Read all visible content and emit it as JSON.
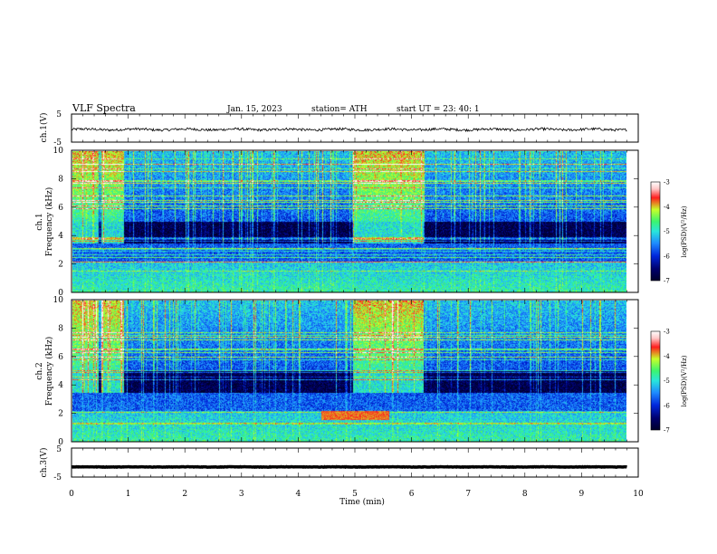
{
  "header": {
    "title": "VLF  Spectra",
    "date": "Jan. 15, 2023",
    "station": "station= ATH",
    "start": "start  UT  =    23: 40: 1"
  },
  "colors": {
    "spectrum": [
      "#00002a",
      "#00006e",
      "#0026dc",
      "#1e8cff",
      "#28e6dc",
      "#3cf56e",
      "#c8ff28",
      "#ff1e1e",
      "#ffc8c8",
      "#ffffff"
    ],
    "trace": "#000000",
    "frame": "#000000"
  },
  "chart_data": [
    {
      "type": "line",
      "panel": "ch1-waveform",
      "ylabel": "ch.1(V)",
      "ylim": [
        -5,
        5
      ],
      "yticks": [
        "5",
        "-5"
      ],
      "xlim": [
        0,
        10
      ],
      "description_values": "noisy waveform centered near -0.5 V with amplitude about ±1 V",
      "baseline": -0.5,
      "noise": 0.9
    },
    {
      "type": "heatmap",
      "panel": "ch1-spectrogram",
      "ylabel_line1": "ch.1",
      "ylabel_line2": "Frequency  (kHz)",
      "ylim": [
        0,
        10
      ],
      "yticks": [
        "10",
        "8",
        "6",
        "4",
        "2",
        "0"
      ],
      "xlim": [
        0,
        10
      ],
      "strong_intervals_min": [
        [
          0,
          0.9
        ],
        [
          4.95,
          6.2
        ]
      ],
      "gap_intervals_min": [
        [
          0.45,
          0.5
        ]
      ],
      "colorbar": {
        "label": "log(PSD)(V²/Hz)",
        "range": [
          -7,
          -3
        ],
        "ticks": [
          "-3",
          "-4",
          "-5",
          "-6",
          "-7"
        ]
      }
    },
    {
      "type": "heatmap",
      "panel": "ch2-spectrogram",
      "ylabel_line1": "ch.2",
      "ylabel_line2": "Frequency  (kHz)",
      "ylim": [
        0,
        10
      ],
      "yticks": [
        "10",
        "8",
        "6",
        "4",
        "2",
        "0"
      ],
      "xlim": [
        0,
        10
      ],
      "strong_intervals_min": [
        [
          0,
          0.9
        ],
        [
          4.95,
          6.2
        ]
      ],
      "gap_intervals_min": [
        [
          0.45,
          0.5
        ]
      ],
      "colorbar": {
        "label": "log(PSD)(V²/Hz)",
        "range": [
          -7,
          -3
        ],
        "ticks": [
          "-3",
          "-4",
          "-5",
          "-6",
          "-7"
        ]
      }
    },
    {
      "type": "line",
      "panel": "ch3-waveform",
      "ylabel": "ch.3(V)",
      "ylim": [
        -5,
        5
      ],
      "yticks": [
        "5",
        "-5"
      ],
      "xlim": [
        0,
        10
      ],
      "baseline": -1.5,
      "noise": 0.15
    }
  ],
  "xaxis": {
    "label": "Time  (min)",
    "ticks": [
      "0",
      "1",
      "2",
      "3",
      "4",
      "5",
      "6",
      "7",
      "8",
      "9",
      "10"
    ]
  }
}
